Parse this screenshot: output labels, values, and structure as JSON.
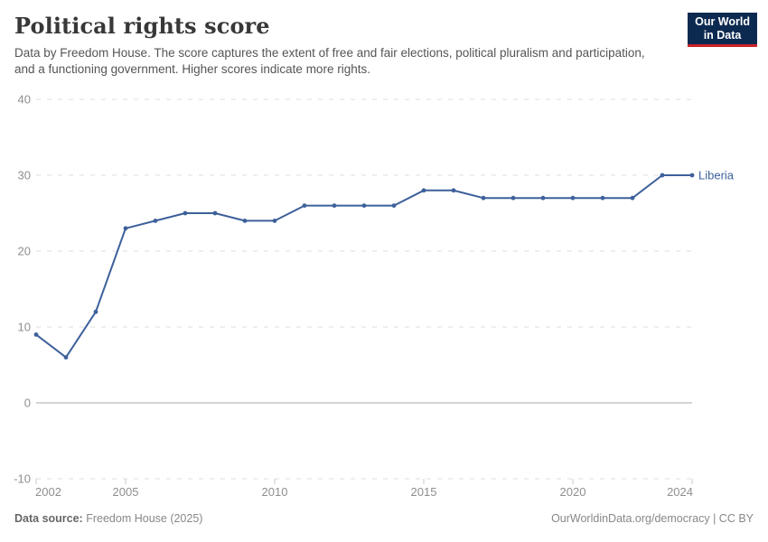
{
  "header": {
    "title": "Political rights score",
    "subtitle": "Data by Freedom House. The score captures the extent of free and fair elections, political pluralism and participation, and a functioning government. Higher scores indicate more rights.",
    "logo_line1": "Our World",
    "logo_line2": "in Data"
  },
  "chart_data": {
    "type": "line",
    "title": "Political rights score",
    "x": [
      2002,
      2003,
      2004,
      2005,
      2006,
      2007,
      2008,
      2009,
      2010,
      2011,
      2012,
      2013,
      2014,
      2015,
      2016,
      2017,
      2018,
      2019,
      2020,
      2021,
      2022,
      2023,
      2024
    ],
    "series": [
      {
        "name": "Liberia",
        "values": [
          9,
          6,
          12,
          23,
          24,
          25,
          25,
          24,
          24,
          26,
          26,
          26,
          26,
          28,
          28,
          27,
          27,
          27,
          27,
          27,
          27,
          30,
          30
        ]
      }
    ],
    "xlim": [
      2002,
      2024
    ],
    "ylim": [
      -10,
      40
    ],
    "xticks": [
      2002,
      2005,
      2010,
      2015,
      2020,
      2024
    ],
    "yticks": [
      -10,
      0,
      10,
      20,
      30,
      40
    ],
    "grid": true,
    "legend_position": "end-of-line"
  },
  "colors": {
    "line": "#3d609b",
    "point": "#3d609b",
    "entity_label": "#3d609b",
    "grid": "#dedede",
    "zero_line": "#a8a8a8",
    "tick_mark": "#c9c9c9",
    "axis_text": "#8f8f8f",
    "logo_bg": "#0c2a50",
    "logo_accent": "#cd2129"
  },
  "footer": {
    "source_label": "Data source:",
    "source_value": "Freedom House (2025)",
    "credit": "OurWorldinData.org/democracy | CC BY"
  }
}
